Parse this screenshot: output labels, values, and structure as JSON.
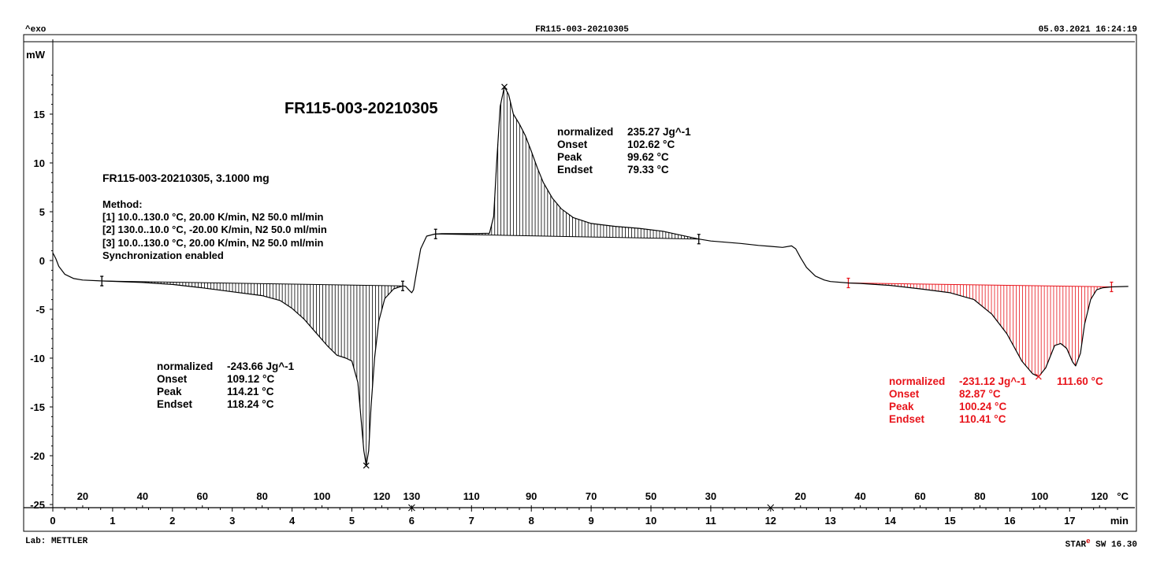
{
  "header": {
    "exo_label": "^exo",
    "file_id": "FR115-003-20210305",
    "datetime": "05.03.2021 16:24:19"
  },
  "footer": {
    "lab": "Lab: METTLER",
    "software_prefix": "STAR",
    "software_mark": "e",
    "software_suffix": " SW 16.30"
  },
  "chart_data": {
    "type": "line",
    "title": "FR115-003-20210305",
    "sample": "FR115-003-20210305, 3.1000 mg",
    "method": {
      "heading": "Method:",
      "steps": [
        "[1] 10.0..130.0 °C, 20.00 K/min, N2 50.0 ml/min",
        "[2] 130.0..10.0 °C, -20.00 K/min, N2 50.0 ml/min",
        "[3] 10.0..130.0 °C, 20.00 K/min, N2 50.0 ml/min",
        "Synchronization enabled"
      ]
    },
    "ylabel": "mW",
    "xlabel": "min",
    "temp_unit": "°C",
    "ylim": [
      -25,
      19.5
    ],
    "xlim": [
      0,
      17.98
    ],
    "y_ticks": [
      "15",
      "10",
      "5",
      "0",
      "-5",
      "-10",
      "-15",
      "-20",
      "-25"
    ],
    "y_tick_values": [
      15,
      10,
      5,
      0,
      -5,
      -10,
      -15,
      -20,
      -25
    ],
    "x_ticks": [
      "0",
      "1",
      "2",
      "3",
      "4",
      "5",
      "6",
      "7",
      "8",
      "9",
      "10",
      "11",
      "12",
      "13",
      "14",
      "15",
      "16",
      "17"
    ],
    "x_tick_values": [
      0,
      1,
      2,
      3,
      4,
      5,
      6,
      7,
      8,
      9,
      10,
      11,
      12,
      13,
      14,
      15,
      16,
      17
    ],
    "temp_ticks": [
      {
        "label": "20",
        "t": 0.5
      },
      {
        "label": "40",
        "t": 1.5
      },
      {
        "label": "60",
        "t": 2.5
      },
      {
        "label": "80",
        "t": 3.5
      },
      {
        "label": "100",
        "t": 4.5
      },
      {
        "label": "120",
        "t": 5.5
      },
      {
        "label": "130",
        "t": 6.0
      },
      {
        "label": "110",
        "t": 7.0
      },
      {
        "label": "90",
        "t": 8.0
      },
      {
        "label": "70",
        "t": 9.0
      },
      {
        "label": "50",
        "t": 10.0
      },
      {
        "label": "30",
        "t": 11.0
      },
      {
        "label": "20",
        "t": 12.5
      },
      {
        "label": "40",
        "t": 13.5
      },
      {
        "label": "60",
        "t": 14.5
      },
      {
        "label": "80",
        "t": 15.5
      },
      {
        "label": "100",
        "t": 16.5
      },
      {
        "label": "120",
        "t": 17.5
      }
    ],
    "segment_markers": [
      6.0,
      12.0
    ],
    "series": [
      {
        "color": "#000000",
        "points": [
          [
            0.0,
            0.8
          ],
          [
            0.05,
            0.2
          ],
          [
            0.1,
            -0.6
          ],
          [
            0.2,
            -1.4
          ],
          [
            0.35,
            -1.85
          ],
          [
            0.5,
            -2.0
          ],
          [
            0.85,
            -2.1
          ],
          [
            1.5,
            -2.25
          ],
          [
            2.0,
            -2.45
          ],
          [
            2.5,
            -2.8
          ],
          [
            3.0,
            -3.2
          ],
          [
            3.5,
            -3.6
          ],
          [
            3.8,
            -4.1
          ],
          [
            4.0,
            -4.9
          ],
          [
            4.2,
            -6.0
          ],
          [
            4.4,
            -7.4
          ],
          [
            4.6,
            -8.8
          ],
          [
            4.75,
            -9.7
          ],
          [
            4.9,
            -10.0
          ],
          [
            5.0,
            -10.3
          ],
          [
            5.1,
            -12.5
          ],
          [
            5.15,
            -16.0
          ],
          [
            5.2,
            -19.5
          ],
          [
            5.24,
            -21.0
          ],
          [
            5.28,
            -19.5
          ],
          [
            5.32,
            -15.0
          ],
          [
            5.38,
            -10.0
          ],
          [
            5.45,
            -6.2
          ],
          [
            5.55,
            -3.9
          ],
          [
            5.7,
            -2.9
          ],
          [
            5.85,
            -2.6
          ],
          [
            5.9,
            -2.65
          ],
          [
            5.95,
            -3.0
          ],
          [
            6.0,
            -3.3
          ],
          [
            6.03,
            -3.0
          ],
          [
            6.08,
            -1.2
          ],
          [
            6.15,
            1.2
          ],
          [
            6.25,
            2.5
          ],
          [
            6.38,
            2.7
          ],
          [
            6.5,
            2.75
          ],
          [
            7.0,
            2.75
          ],
          [
            7.3,
            2.8
          ],
          [
            7.37,
            4.5
          ],
          [
            7.42,
            10.0
          ],
          [
            7.48,
            15.8
          ],
          [
            7.55,
            17.8
          ],
          [
            7.62,
            17.0
          ],
          [
            7.7,
            15.0
          ],
          [
            7.8,
            14.0
          ],
          [
            7.9,
            12.8
          ],
          [
            8.0,
            11.2
          ],
          [
            8.1,
            9.5
          ],
          [
            8.2,
            8.0
          ],
          [
            8.35,
            6.4
          ],
          [
            8.5,
            5.3
          ],
          [
            8.7,
            4.4
          ],
          [
            9.0,
            3.8
          ],
          [
            9.4,
            3.5
          ],
          [
            9.8,
            3.3
          ],
          [
            10.2,
            3.0
          ],
          [
            10.5,
            2.6
          ],
          [
            10.8,
            2.2
          ],
          [
            11.0,
            2.0
          ],
          [
            11.5,
            1.75
          ],
          [
            11.8,
            1.55
          ],
          [
            12.0,
            1.45
          ],
          [
            12.2,
            1.35
          ],
          [
            12.35,
            1.5
          ],
          [
            12.42,
            1.2
          ],
          [
            12.5,
            0.3
          ],
          [
            12.6,
            -0.7
          ],
          [
            12.75,
            -1.6
          ],
          [
            12.9,
            -2.0
          ],
          [
            13.0,
            -2.15
          ],
          [
            13.3,
            -2.3
          ],
          [
            13.5,
            -2.35
          ],
          [
            14.0,
            -2.55
          ],
          [
            14.5,
            -2.9
          ],
          [
            15.0,
            -3.3
          ],
          [
            15.4,
            -4.0
          ],
          [
            15.7,
            -5.5
          ],
          [
            15.95,
            -7.5
          ],
          [
            16.2,
            -10.3
          ],
          [
            16.38,
            -11.6
          ],
          [
            16.48,
            -11.9
          ],
          [
            16.6,
            -11.0
          ],
          [
            16.75,
            -8.7
          ],
          [
            16.85,
            -8.5
          ],
          [
            16.95,
            -9.0
          ],
          [
            17.05,
            -10.4
          ],
          [
            17.1,
            -10.8
          ],
          [
            17.18,
            -9.5
          ],
          [
            17.25,
            -6.5
          ],
          [
            17.35,
            -4.0
          ],
          [
            17.45,
            -3.0
          ],
          [
            17.55,
            -2.8
          ],
          [
            17.7,
            -2.7
          ],
          [
            17.98,
            -2.65
          ]
        ]
      }
    ],
    "peaks": [
      {
        "color": "#000000",
        "t_start": 0.82,
        "t_end": 5.85,
        "baseline": [
          [
            0.82,
            -2.1
          ],
          [
            5.85,
            -2.6
          ]
        ],
        "annotation": {
          "labels": [
            "normalized",
            "Onset",
            "Peak",
            "Endset"
          ],
          "values": [
            "-243.66 Jg^-1",
            "109.12 °C",
            "114.21 °C",
            "118.24 °C"
          ]
        }
      },
      {
        "color": "#000000",
        "t_start": 6.4,
        "t_end": 10.8,
        "baseline": [
          [
            6.4,
            2.72
          ],
          [
            10.8,
            2.2
          ]
        ],
        "annotation": {
          "labels": [
            "normalized",
            "Onset",
            "Peak",
            "Endset"
          ],
          "values": [
            "235.27 Jg^-1",
            "102.62 °C",
            "99.62 °C",
            "79.33 °C"
          ]
        }
      },
      {
        "color": "#e8141b",
        "t_start": 13.3,
        "t_end": 17.7,
        "baseline": [
          [
            13.3,
            -2.3
          ],
          [
            17.7,
            -2.7
          ]
        ],
        "annotation": {
          "labels": [
            "normalized",
            "Onset",
            "Peak",
            "Endset"
          ],
          "values": [
            "-231.12 Jg^-1",
            "82.87 °C",
            "100.24 °C",
            "110.41 °C"
          ],
          "extra": "111.60 °C"
        }
      }
    ]
  }
}
